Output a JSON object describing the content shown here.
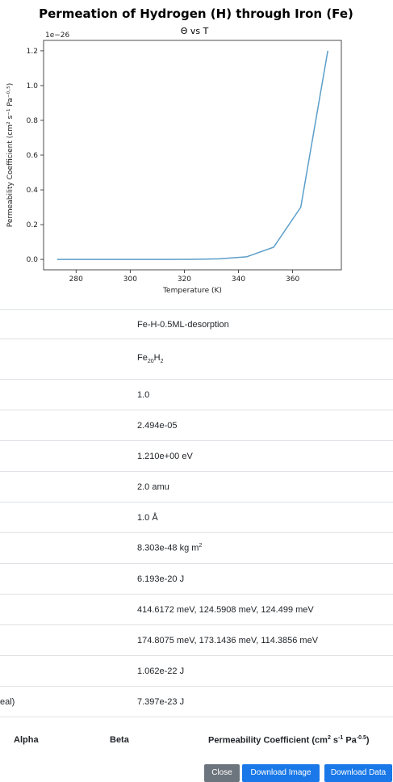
{
  "chart_data": {
    "type": "line",
    "title": "Permeation of Hydrogen (H) through Iron (Fe)",
    "subtitle": "Θ vs T",
    "xlabel": "Temperature (K)",
    "ylabel": "Permeability Coefficient (cm² s⁻¹ Pa⁻⁰·⁵)",
    "y_offset_label": "1e−26",
    "xlim": [
      268,
      378
    ],
    "ylim": [
      -0.06,
      1.26
    ],
    "xticks": [
      280,
      300,
      320,
      340,
      360
    ],
    "yticks": [
      0.0,
      0.2,
      0.4,
      0.6,
      0.8,
      1.0,
      1.2
    ],
    "x": [
      273,
      283,
      293,
      303,
      313,
      323,
      333,
      343,
      353,
      363,
      373
    ],
    "y": [
      0.0,
      0.0,
      0.0,
      0.0,
      0.0,
      0.0005,
      0.003,
      0.015,
      0.07,
      0.3,
      1.2
    ],
    "line_color": "#5b9ec9",
    "grid": false,
    "legend": "none"
  },
  "info_rows": [
    {
      "label": "",
      "value": "Fe-H-0.5ML-desorption"
    },
    {
      "label": "",
      "formula": {
        "p1": "Fe",
        "s1": "20",
        "p2": "H",
        "s2": "2"
      }
    },
    {
      "label": "",
      "value": "1.0"
    },
    {
      "label": "",
      "value": "2.494e-05"
    },
    {
      "label": "",
      "value": "1.210e+00 eV"
    },
    {
      "label": "",
      "value": "2.0 amu"
    },
    {
      "label": "",
      "value": "1.0 Å"
    },
    {
      "label": "",
      "value": "8.303e-48 kg m",
      "sup": "2"
    },
    {
      "label": "",
      "value": "6.193e-20 J"
    },
    {
      "label": "",
      "value": "414.6172 meV, 124.5908 meV, 124.499 meV"
    },
    {
      "label": "",
      "value": "174.8075 meV, 173.1436 meV, 114.3856 meV"
    },
    {
      "label": "",
      "value": "1.062e-22 J"
    },
    {
      "label": "eal)",
      "value": "7.397e-23 J"
    }
  ],
  "results_header": {
    "alpha": "Alpha",
    "beta": "Beta",
    "perm_main": "Permeability Coefficient (cm",
    "perm_sup1": "2",
    "perm_mid1": " s",
    "perm_sup2": "-1",
    "perm_mid2": " Pa",
    "perm_sup3": "-0.5",
    "perm_end": ")"
  },
  "buttons": {
    "close": "Close",
    "download_image": "Download Image",
    "download_data": "Download Data"
  }
}
